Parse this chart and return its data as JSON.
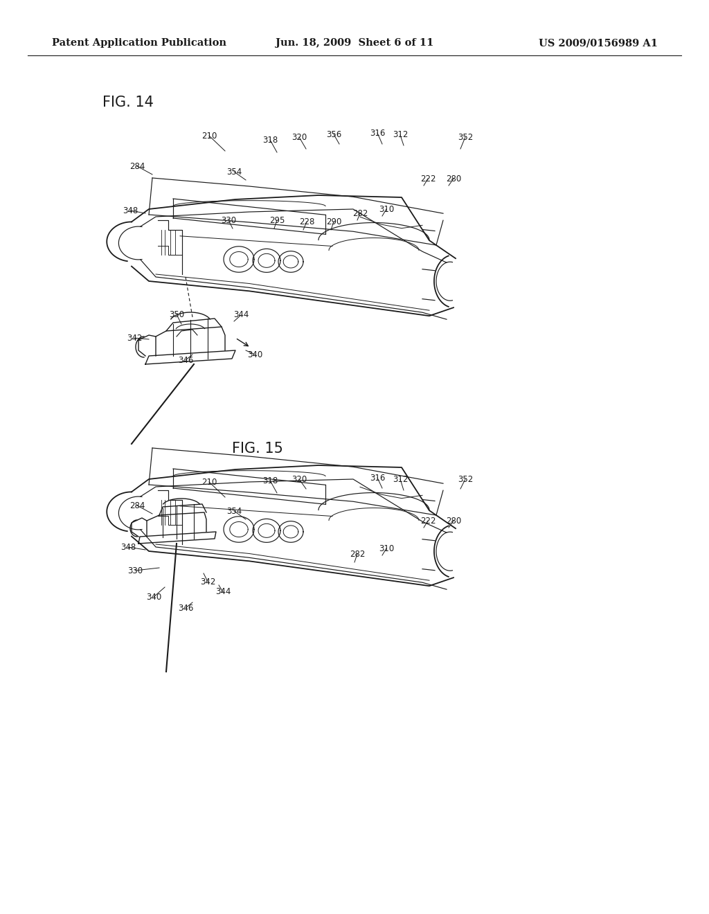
{
  "background_color": "#ffffff",
  "header_left": "Patent Application Publication",
  "header_center": "Jun. 18, 2009  Sheet 6 of 11",
  "header_right": "US 2009/0156989 A1",
  "line_color": "#1a1a1a",
  "annotation_fontsize": 8.5,
  "fig14_label": "FIG. 14",
  "fig15_label": "FIG. 15",
  "header_fontsize": 10.5,
  "fig_label_fontsize": 15
}
